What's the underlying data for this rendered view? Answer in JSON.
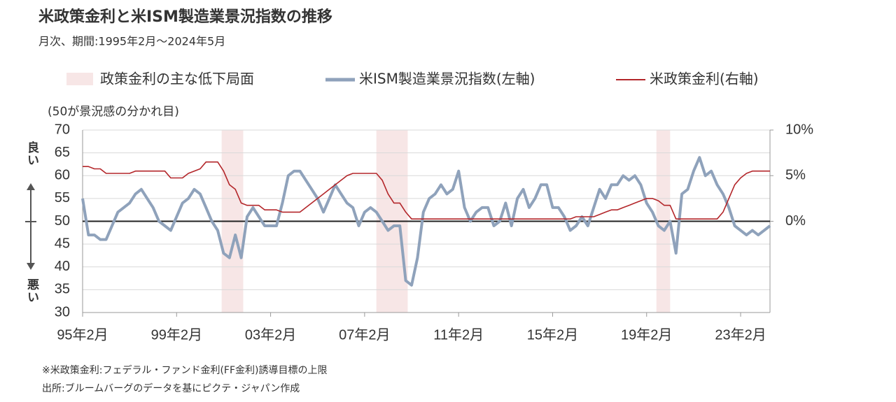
{
  "chart_data": {
    "type": "line",
    "title": "米政策金利と米ISM製造業景況指数の推移",
    "subtitle": "月次、期間:1995年2月～2024年5月",
    "annotation": "(50が景況感の分かれ目)",
    "good_label": "良い",
    "bad_label": "悪い",
    "notes": [
      "※米政策金利:フェデラル・ファンド金利(FF金利)誘導目標の上限",
      "出所:ブルームバーグのデータを基にピクテ・ジャパン作成"
    ],
    "x": [
      "1995-02",
      "1995-05",
      "1995-08",
      "1995-11",
      "1996-02",
      "1996-05",
      "1996-08",
      "1996-11",
      "1997-02",
      "1997-05",
      "1997-08",
      "1997-11",
      "1998-02",
      "1998-05",
      "1998-08",
      "1998-11",
      "1999-02",
      "1999-05",
      "1999-08",
      "1999-11",
      "2000-02",
      "2000-05",
      "2000-08",
      "2000-11",
      "2001-02",
      "2001-05",
      "2001-08",
      "2001-11",
      "2002-02",
      "2002-05",
      "2002-08",
      "2002-11",
      "2003-02",
      "2003-05",
      "2003-08",
      "2003-11",
      "2004-02",
      "2004-05",
      "2004-08",
      "2004-11",
      "2005-02",
      "2005-05",
      "2005-08",
      "2005-11",
      "2006-02",
      "2006-05",
      "2006-08",
      "2006-11",
      "2007-02",
      "2007-05",
      "2007-08",
      "2007-11",
      "2008-02",
      "2008-05",
      "2008-08",
      "2008-11",
      "2009-02",
      "2009-05",
      "2009-08",
      "2009-11",
      "2010-02",
      "2010-05",
      "2010-08",
      "2010-11",
      "2011-02",
      "2011-05",
      "2011-08",
      "2011-11",
      "2012-02",
      "2012-05",
      "2012-08",
      "2012-11",
      "2013-02",
      "2013-05",
      "2013-08",
      "2013-11",
      "2014-02",
      "2014-05",
      "2014-08",
      "2014-11",
      "2015-02",
      "2015-05",
      "2015-08",
      "2015-11",
      "2016-02",
      "2016-05",
      "2016-08",
      "2016-11",
      "2017-02",
      "2017-05",
      "2017-08",
      "2017-11",
      "2018-02",
      "2018-05",
      "2018-08",
      "2018-11",
      "2019-02",
      "2019-05",
      "2019-08",
      "2019-11",
      "2020-02",
      "2020-05",
      "2020-08",
      "2020-11",
      "2021-02",
      "2021-05",
      "2021-08",
      "2021-11",
      "2022-02",
      "2022-05",
      "2022-08",
      "2022-11",
      "2023-02",
      "2023-05",
      "2023-08",
      "2023-11",
      "2024-02",
      "2024-05"
    ],
    "xlim": [
      "1995-02",
      "2024-05"
    ],
    "xticks": [
      {
        "value": "1995-02",
        "label": "95年2月"
      },
      {
        "value": "1999-02",
        "label": "99年2月"
      },
      {
        "value": "2003-02",
        "label": "03年2月"
      },
      {
        "value": "2007-02",
        "label": "07年2月"
      },
      {
        "value": "2011-02",
        "label": "11年2月"
      },
      {
        "value": "2015-02",
        "label": "15年2月"
      },
      {
        "value": "2019-02",
        "label": "19年2月"
      },
      {
        "value": "2023-02",
        "label": "23年2月"
      }
    ],
    "ylim": [
      30,
      70
    ],
    "yticks": [
      30,
      35,
      40,
      45,
      50,
      55,
      60,
      65,
      70
    ],
    "y2lim": [
      -10,
      10
    ],
    "y2ticks": [
      {
        "value": 0,
        "label": "0%"
      },
      {
        "value": 5,
        "label": "5%"
      },
      {
        "value": 10,
        "label": "10%"
      }
    ],
    "reference_line": 50,
    "grid": true,
    "shaded": {
      "name": "政策金利の主な低下局面",
      "color": "#f7e6e6",
      "periods": [
        [
          "2001-01",
          "2001-12"
        ],
        [
          "2007-08",
          "2008-12"
        ],
        [
          "2019-07",
          "2020-02"
        ]
      ]
    },
    "series": [
      {
        "name": "米ISM製造業景況指数(左軸)",
        "color": "#8fa2bb",
        "axis": "y",
        "values": [
          55,
          47,
          47,
          46,
          46,
          49,
          52,
          53,
          54,
          56,
          57,
          55,
          53,
          50,
          49,
          48,
          51,
          54,
          55,
          57,
          56,
          53,
          50,
          48,
          43,
          42,
          47,
          42,
          51,
          53,
          51,
          49,
          49,
          49,
          54,
          60,
          61,
          61,
          59,
          57,
          55,
          52,
          55,
          58,
          56,
          54,
          53,
          49,
          52,
          53,
          52,
          50,
          48,
          49,
          49,
          37,
          36,
          42,
          52,
          55,
          56,
          58,
          56,
          57,
          61,
          53,
          50,
          52,
          53,
          53,
          49,
          50,
          54,
          49,
          55,
          57,
          53,
          55,
          58,
          58,
          53,
          53,
          51,
          48,
          49,
          51,
          49,
          53,
          57,
          55,
          58,
          58,
          60,
          59,
          60,
          58,
          54,
          52,
          49,
          48,
          50,
          43,
          56,
          57,
          61,
          64,
          60,
          61,
          58,
          56,
          53,
          49,
          48,
          47,
          48,
          47,
          48,
          49
        ]
      },
      {
        "name": "米政策金利(右軸)",
        "color": "#b3262a",
        "axis": "y2",
        "values": [
          6.0,
          6.0,
          5.75,
          5.75,
          5.25,
          5.25,
          5.25,
          5.25,
          5.25,
          5.5,
          5.5,
          5.5,
          5.5,
          5.5,
          5.5,
          4.75,
          4.75,
          4.75,
          5.25,
          5.5,
          5.75,
          6.5,
          6.5,
          6.5,
          5.5,
          4.0,
          3.5,
          2.0,
          1.75,
          1.75,
          1.75,
          1.25,
          1.25,
          1.25,
          1.0,
          1.0,
          1.0,
          1.0,
          1.5,
          2.0,
          2.5,
          3.0,
          3.5,
          4.0,
          4.5,
          5.0,
          5.25,
          5.25,
          5.25,
          5.25,
          5.25,
          4.5,
          3.0,
          2.0,
          2.0,
          1.0,
          0.25,
          0.25,
          0.25,
          0.25,
          0.25,
          0.25,
          0.25,
          0.25,
          0.25,
          0.25,
          0.25,
          0.25,
          0.25,
          0.25,
          0.25,
          0.25,
          0.25,
          0.25,
          0.25,
          0.25,
          0.25,
          0.25,
          0.25,
          0.25,
          0.25,
          0.25,
          0.25,
          0.25,
          0.5,
          0.5,
          0.5,
          0.5,
          0.75,
          1.0,
          1.25,
          1.25,
          1.5,
          1.75,
          2.0,
          2.25,
          2.5,
          2.5,
          2.25,
          1.75,
          1.75,
          0.25,
          0.25,
          0.25,
          0.25,
          0.25,
          0.25,
          0.25,
          0.25,
          1.0,
          2.5,
          4.0,
          4.75,
          5.25,
          5.5,
          5.5,
          5.5,
          5.5
        ]
      }
    ]
  }
}
